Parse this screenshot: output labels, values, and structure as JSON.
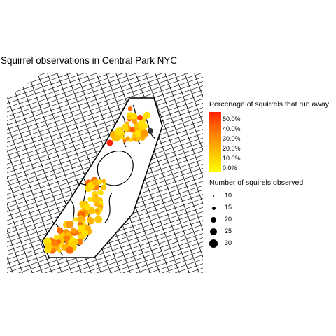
{
  "title": "Squirrel observations in Central Park NYC",
  "legend_fill": {
    "title": "Percenage of squirrels that run away",
    "ticks": [
      "50.0%",
      "40.0%",
      "30.0%",
      "20.0%",
      "10.0%",
      "0.0%"
    ],
    "color_low": "#ffff00",
    "color_high": "#ff1e00"
  },
  "legend_size": {
    "title": "Number of squirels observed",
    "items": [
      {
        "label": "10",
        "value": 10
      },
      {
        "label": "15",
        "value": 15
      },
      {
        "label": "20",
        "value": 20
      },
      {
        "label": "25",
        "value": 25
      },
      {
        "label": "30",
        "value": 30
      }
    ]
  },
  "colors": {
    "street_lines": "#000000",
    "background": "#ffffff"
  }
}
